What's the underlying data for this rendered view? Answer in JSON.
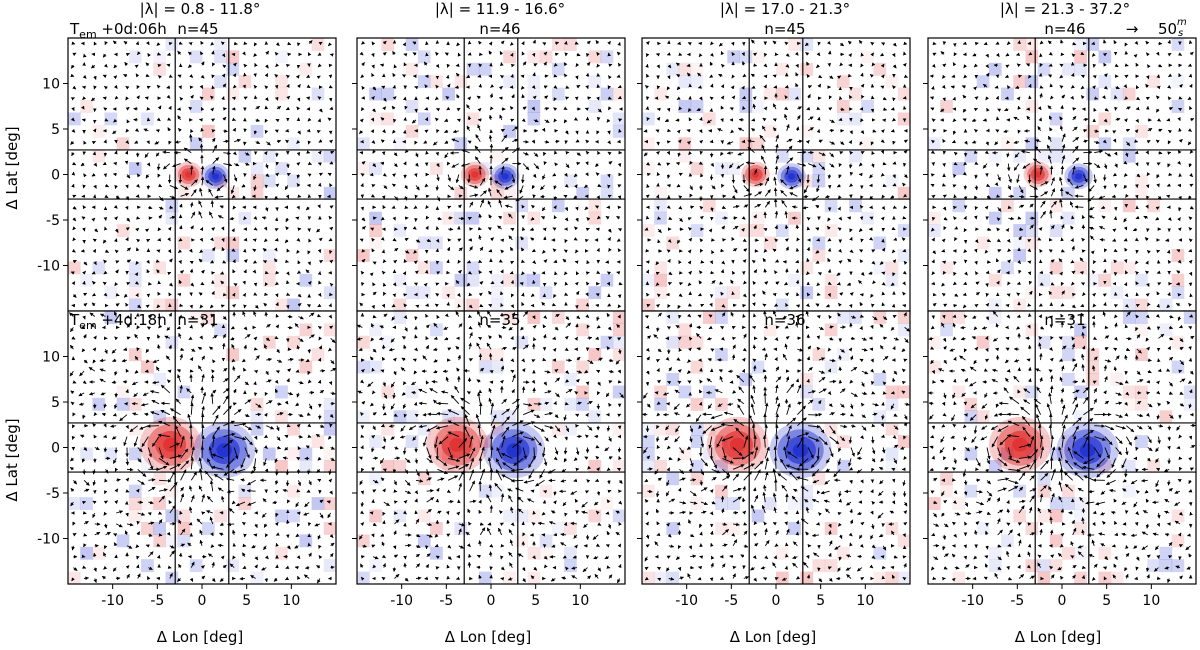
{
  "chart_data": {
    "type": "quiver-heatmap-grid",
    "xlabel": "Δ Lon [deg]",
    "ylabel": "Δ Lat [deg]",
    "xlim": [
      -15,
      15
    ],
    "ylim": [
      -15,
      15
    ],
    "xticks": [
      -10,
      -5,
      0,
      5,
      10
    ],
    "yticks": [
      -10,
      -5,
      0,
      5,
      10
    ],
    "reference_lines": {
      "vertical": [
        -3,
        3
      ],
      "horizontal": [
        -2.7,
        2.7
      ]
    },
    "columns": [
      {
        "title": "|λ| = 0.8 - 11.8°"
      },
      {
        "title": "|λ| = 11.9 - 16.6°"
      },
      {
        "title": "|λ| = 17.0 - 21.3°"
      },
      {
        "title": "|λ| = 21.3 - 37.2°"
      }
    ],
    "rows": [
      {
        "time_label": "T",
        "time_sub": "em",
        "time_value": " +0d:06h",
        "n": [
          "n=45",
          "n=46",
          "n=45",
          "n=46"
        ],
        "red_center": [
          -1.5,
          0
        ],
        "blue_center": [
          1.5,
          -0.2
        ],
        "spot_radius": 1.2,
        "spot_amp": 1.0
      },
      {
        "time_label": "T",
        "time_sub": "em",
        "time_value": " +4d:18h",
        "n": [
          "n=31",
          "n=35",
          "n=36",
          "n=31"
        ],
        "red_center": [
          -3.5,
          0.3
        ],
        "blue_center": [
          2.5,
          -0.3
        ],
        "spot_radius": 2.6,
        "spot_amp": 1.0
      }
    ],
    "red_offset_by_column": [
      0,
      0.3,
      0.8,
      1.2
    ],
    "velocity_legend": {
      "arrow": "→",
      "value": "50",
      "unit_top": "m",
      "unit_bottom": "s"
    },
    "colors": {
      "positive": "#e03030",
      "negative": "#2030d0",
      "arrows": "#000000"
    }
  }
}
